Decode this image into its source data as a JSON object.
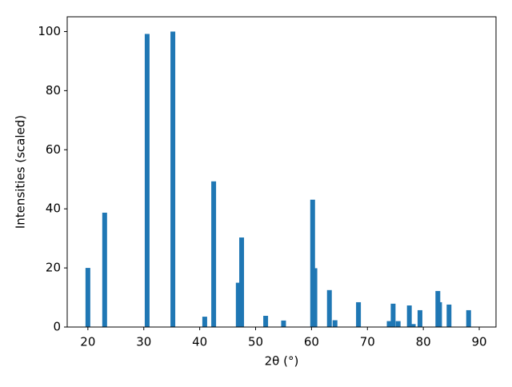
{
  "chart_data": {
    "type": "bar",
    "xlabel": "2θ (°)",
    "ylabel": "Intensities (scaled)",
    "x": [
      20.0,
      23.0,
      30.6,
      35.2,
      40.9,
      42.5,
      46.9,
      47.5,
      51.8,
      55.0,
      60.2,
      60.6,
      63.2,
      64.2,
      68.4,
      73.9,
      74.6,
      75.5,
      77.5,
      78.2,
      79.4,
      82.6,
      82.9,
      84.6,
      88.1
    ],
    "values": [
      20,
      38.7,
      99.2,
      100,
      3.5,
      49.3,
      15,
      30.3,
      3.8,
      2.2,
      43.1,
      19.9,
      12.5,
      2.3,
      8.4,
      2.0,
      7.9,
      2.0,
      7.3,
      1.0,
      5.7,
      12.2,
      8.4,
      7.6,
      5.7
    ],
    "color": "#1f77b4",
    "xlim": [
      16.3,
      93.0
    ],
    "xticks": [
      20,
      30,
      40,
      50,
      60,
      70,
      80,
      90
    ],
    "ylim": [
      0,
      105
    ],
    "yticks": [
      0,
      20,
      40,
      60,
      80,
      100
    ]
  }
}
